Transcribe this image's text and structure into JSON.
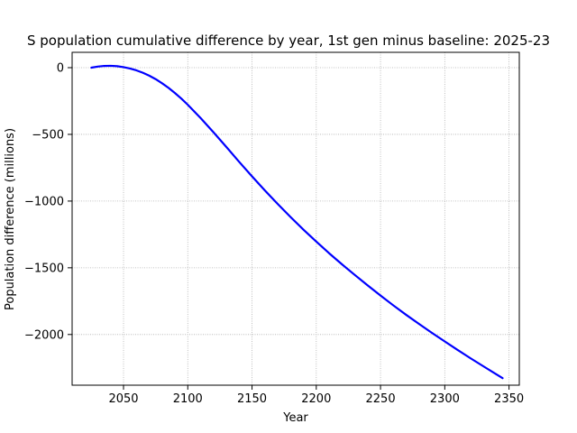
{
  "chart_data": {
    "type": "line",
    "title": "S population cumulative difference by year, 1st gen minus baseline: 2025-23",
    "xlabel": "Year",
    "ylabel": "Population difference (millions)",
    "xlim": [
      2010,
      2358
    ],
    "ylim": [
      -2380,
      115
    ],
    "xticks": [
      2050,
      2100,
      2150,
      2200,
      2250,
      2300,
      2350
    ],
    "xtick_labels": [
      "2050",
      "2100",
      "2150",
      "2200",
      "2250",
      "2300",
      "2350"
    ],
    "yticks": [
      0,
      -500,
      -1000,
      -1500,
      -2000
    ],
    "ytick_labels": [
      "0",
      "−500",
      "−1000",
      "−1500",
      "−2000"
    ],
    "grid": true,
    "series": [
      {
        "color": "#0000ff",
        "x": [
          2025,
          2030,
          2035,
          2040,
          2045,
          2050,
          2055,
          2060,
          2065,
          2070,
          2075,
          2080,
          2085,
          2090,
          2095,
          2100,
          2110,
          2120,
          2130,
          2140,
          2150,
          2160,
          2170,
          2180,
          2190,
          2200,
          2210,
          2220,
          2230,
          2240,
          2250,
          2260,
          2270,
          2280,
          2290,
          2300,
          2310,
          2320,
          2330,
          2340,
          2345
        ],
        "y": [
          0,
          8,
          13,
          14,
          11,
          4,
          -6,
          -20,
          -38,
          -60,
          -86,
          -117,
          -151,
          -190,
          -232,
          -278,
          -378,
          -484,
          -594,
          -706,
          -815,
          -920,
          -1022,
          -1120,
          -1214,
          -1304,
          -1391,
          -1474,
          -1554,
          -1632,
          -1708,
          -1782,
          -1853,
          -1921,
          -1988,
          -2052,
          -2116,
          -2178,
          -2238,
          -2298,
          -2327
        ]
      }
    ]
  }
}
